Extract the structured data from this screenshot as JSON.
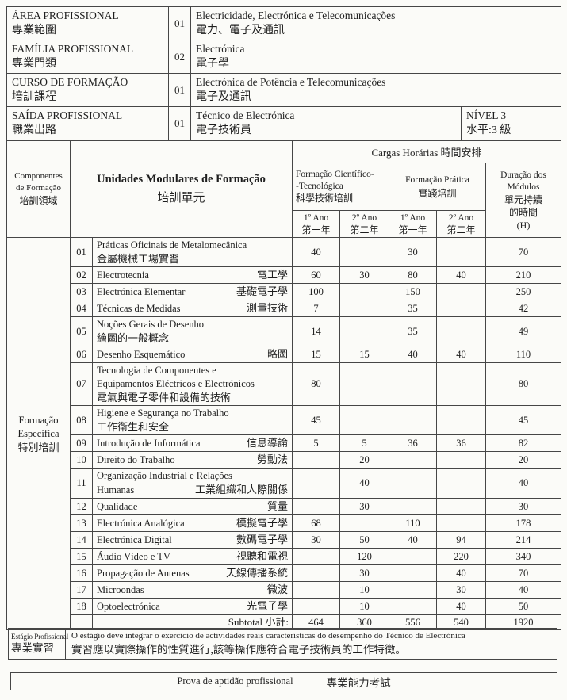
{
  "colors": {
    "paper": "#fbfbf8",
    "ink": "#1e1e1e",
    "line": "#464646"
  },
  "profile_table": {
    "rows": [
      {
        "label_pt": "ÁREA PROFISSIONAL",
        "label_zh": "專業範圍",
        "code": "01",
        "desc_pt": "Electricidade, Electrónica e Telecomunicações",
        "desc_zh": "電力、電子及通訊"
      },
      {
        "label_pt": "FAMÍLIA PROFISSIONAL",
        "label_zh": "專業門類",
        "code": "02",
        "desc_pt": "Electrónica",
        "desc_zh": "電子學"
      },
      {
        "label_pt": "CURSO DE FORMAÇÃO",
        "label_zh": "培訓課程",
        "code": "01",
        "desc_pt": "Electrónica de Potência e Telecomunicações",
        "desc_zh": "電子及通訊"
      },
      {
        "label_pt": "SAÍDA PROFISSIONAL",
        "label_zh": "職業出路",
        "code": "01",
        "desc_pt": "Técnico de Electrónica",
        "desc_zh": "電子技術員",
        "nivel_pt": "NÍVEL 3",
        "nivel_zh": "水平:3 級"
      }
    ]
  },
  "modules_table": {
    "header": {
      "componentes": [
        "Componentes",
        "de Formação",
        "培訓領域"
      ],
      "unidades_pt": "Unidades Modulares de Formação",
      "unidades_zh": "培訓單元",
      "cargas": "Cargas Horárias 時間安排",
      "cientifico": [
        "Formação Científico-",
        "-Tecnológica",
        "科學技術培訓"
      ],
      "pratica": [
        "Formação Prática",
        "實踐培訓"
      ],
      "duracao": [
        "Duração dos",
        "Módulos",
        "單元持續",
        "的時間",
        "(H)"
      ],
      "ano1_pt": "1º Ano",
      "ano1_zh": "第一年",
      "ano2_pt": "2º Ano",
      "ano2_zh": "第二年"
    },
    "group_label": [
      "Formação",
      "Específica",
      "特別培訓"
    ],
    "rows": [
      {
        "num": "01",
        "lines": [
          {
            "pt": "Práticas Oficinais de Metalomecânica"
          },
          {
            "zh": "金屬機械工場實習"
          }
        ],
        "hours": [
          "40",
          "",
          "30",
          "",
          "70"
        ]
      },
      {
        "num": "02",
        "lines": [
          {
            "pt": "Electrotecnia",
            "zh": "電工學"
          }
        ],
        "hours": [
          "60",
          "30",
          "80",
          "40",
          "210"
        ]
      },
      {
        "num": "03",
        "lines": [
          {
            "pt": "Electrónica Elementar",
            "zh": "基礎電子學"
          }
        ],
        "hours": [
          "100",
          "",
          "150",
          "",
          "250"
        ]
      },
      {
        "num": "04",
        "lines": [
          {
            "pt": "Técnicas de Medidas",
            "zh": "測量技術"
          }
        ],
        "hours": [
          "7",
          "",
          "35",
          "",
          "42"
        ]
      },
      {
        "num": "05",
        "lines": [
          {
            "pt": "Noções Gerais de Desenho"
          },
          {
            "zh": "繪圖的一般概念"
          }
        ],
        "hours": [
          "14",
          "",
          "35",
          "",
          "49"
        ]
      },
      {
        "num": "06",
        "lines": [
          {
            "pt": "Desenho Esquemático",
            "zh": "略圖"
          }
        ],
        "hours": [
          "15",
          "15",
          "40",
          "40",
          "110"
        ]
      },
      {
        "num": "07",
        "lines": [
          {
            "pt": "Tecnologia de Componentes e"
          },
          {
            "pt": "Equipamentos Eléctricos e Electrónicos"
          },
          {
            "zh": "電氣與電子零件和設備的技術"
          }
        ],
        "hours": [
          "80",
          "",
          "",
          "",
          "80"
        ]
      },
      {
        "num": "08",
        "lines": [
          {
            "pt": "Higiene e Segurança no Trabalho"
          },
          {
            "zh": "工作衛生和安全"
          }
        ],
        "hours": [
          "45",
          "",
          "",
          "",
          "45"
        ]
      },
      {
        "num": "09",
        "lines": [
          {
            "pt": "Introdução de Informática",
            "zh": "信息導論"
          }
        ],
        "hours": [
          "5",
          "5",
          "36",
          "36",
          "82"
        ]
      },
      {
        "num": "10",
        "lines": [
          {
            "pt": "Direito do Trabalho",
            "zh": "勞動法"
          }
        ],
        "hours": [
          "",
          "20",
          "",
          "",
          "20"
        ]
      },
      {
        "num": "11",
        "lines": [
          {
            "pt": "Organização Industrial e Relações"
          },
          {
            "pt": "Humanas",
            "zh": "工業組織和人際關係"
          }
        ],
        "hours": [
          "",
          "40",
          "",
          "",
          "40"
        ]
      },
      {
        "num": "12",
        "lines": [
          {
            "pt": "Qualidade",
            "zh": "質量"
          }
        ],
        "hours": [
          "",
          "30",
          "",
          "",
          "30"
        ]
      },
      {
        "num": "13",
        "lines": [
          {
            "pt": "Electrónica Analógica",
            "zh": "模擬電子學"
          }
        ],
        "hours": [
          "68",
          "",
          "110",
          "",
          "178"
        ]
      },
      {
        "num": "14",
        "lines": [
          {
            "pt": "Electrónica Digital",
            "zh": "數碼電子學"
          }
        ],
        "hours": [
          "30",
          "50",
          "40",
          "94",
          "214"
        ]
      },
      {
        "num": "15",
        "lines": [
          {
            "pt": "Áudio Vídeo e TV",
            "zh": "視聽和電視"
          }
        ],
        "hours": [
          "",
          "120",
          "",
          "220",
          "340"
        ]
      },
      {
        "num": "16",
        "lines": [
          {
            "pt": "Propagação de Antenas",
            "zh": "天線傳播系統"
          }
        ],
        "hours": [
          "",
          "30",
          "",
          "40",
          "70"
        ]
      },
      {
        "num": "17",
        "lines": [
          {
            "pt": "Microondas",
            "zh": "微波"
          }
        ],
        "hours": [
          "",
          "10",
          "",
          "30",
          "40"
        ]
      },
      {
        "num": "18",
        "lines": [
          {
            "pt": "Optoelectrónica",
            "zh": "光電子學"
          }
        ],
        "hours": [
          "",
          "10",
          "",
          "40",
          "50"
        ]
      }
    ],
    "subtotal": {
      "label": "Subtotal 小計:",
      "values": [
        "464",
        "360",
        "556",
        "540",
        "1920"
      ]
    }
  },
  "estagio": {
    "label_pt": "Estágio Profissional",
    "label_zh": "專業實習",
    "text_pt": "O estágio deve integrar o exercício de actividades reais características do desempenho do Técnico de Electrónica",
    "text_zh": "實習應以實際操作的性質進行,該等操作應符合電子技術員的工作特徵。"
  },
  "prova": {
    "pt": "Prova de aptidão profissional",
    "zh": "專業能力考試"
  }
}
